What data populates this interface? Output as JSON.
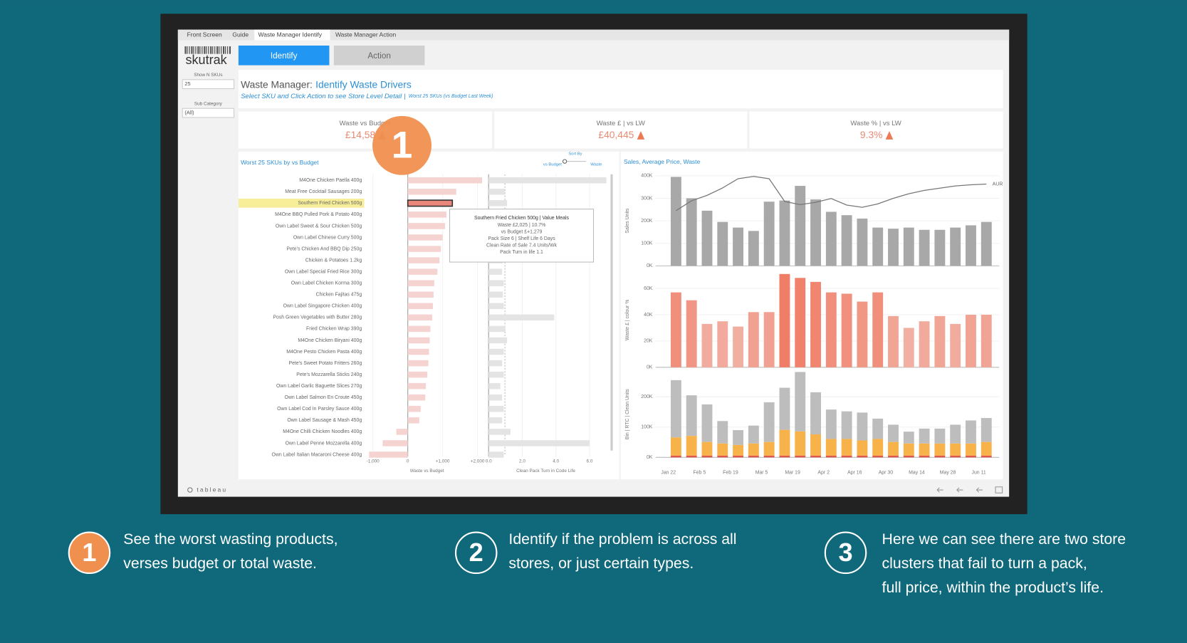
{
  "dashboard": {
    "tabs": [
      "Front Screen",
      "Guide",
      "Waste Manager Identify",
      "Waste Manager Action"
    ],
    "logo": "skutrak",
    "buttons": [
      "Identify",
      "Action"
    ],
    "filters": [
      {
        "label": "Show N SKUs",
        "value": "25"
      },
      {
        "label": "Sub Category",
        "value": "(All)"
      }
    ],
    "title_prefix": "Waste Manager:",
    "title_highlight": "Identify Waste Drivers",
    "subtitle": "Select SKU and  Click Action to see Store Level Detail |",
    "subtitle_note": "Worst 25 SKUs (vs Budget Last Week)",
    "kpis": [
      {
        "label": "Waste vs Budget",
        "value": "£14,58"
      },
      {
        "label": "Waste £ | vs LW",
        "value": "£40,445"
      },
      {
        "label": "Waste % | vs LW",
        "value": "9.3%"
      }
    ],
    "footer": "tableau",
    "annotation": "1"
  },
  "chart_data": [
    {
      "type": "hbar",
      "title": "Worst 25 SKUs by vs Budget",
      "sort_label": "Sort By",
      "sort_options": [
        "vs Budget",
        "Waste"
      ],
      "xlabel": "Waste vs Budget",
      "color": "#f5d3d0",
      "highlight_color": "#e8877a",
      "highlight_index": 2,
      "highlight_row_color": "#f8ee9a",
      "categories": [
        "M4One Chicken Paella 400g",
        "Meat Free Cocktail Sausages 200g",
        "Southern Fried Chicken 500g",
        "M4One BBQ Pulled Pork & Potato 400g",
        "Own Label Sweet & Sour Chicken 500g",
        "Own Label Chinese Curry 500g",
        "Pete's Chicken And BBQ Dip 250g",
        "Chicken & Potatoes 1.2kg",
        "Own Label Special Fried Rice 300g",
        "Own Label Chicken Korma 300g",
        "Chicken Fajitas 475g",
        "Own Label Singapore Chicken 400g",
        "Posh Green Vegetables with Butter 280g",
        "Fried Chicken Wrap 390g",
        "M4One Chicken Biryani 400g",
        "M4One Pesto Chicken Pasta 400g",
        "Pete's Sweet Potato Fritters 260g",
        "Pete's Mozzarella Sticks 240g",
        "Own Label Garlic Baguette Slices 270g",
        "Own Label Salmon En Croute 450g",
        "Own Label Cod In Parsley Sauce 400g",
        "Own Label Sausage & Mash 450g",
        "M4One Chilli Chicken Noodles 400g",
        "Own Label Penne Mozzarella 400g",
        "Own Label Italian Macaroni Cheese 400g"
      ],
      "values": [
        2130,
        1390,
        1279,
        1110,
        1070,
        1000,
        950,
        910,
        850,
        760,
        740,
        720,
        700,
        650,
        630,
        610,
        590,
        560,
        520,
        500,
        370,
        330,
        -330,
        -720,
        -1110
      ],
      "xlim": [
        -1100,
        2200
      ],
      "xticks": [
        {
          "value": -1000,
          "label": "-1,000"
        },
        0,
        {
          "value": 1000,
          "label": "+1,000"
        },
        {
          "value": 2000,
          "label": "+2,000"
        }
      ],
      "tooltip": [
        "Southern Fried Chicken 500g | Value Meals",
        "Waste £2,025 | 10.7%",
        "vs Budget £+1,279",
        "Pack Size 6 | Shelf Life 6 Days",
        "Clean Rate of Sale 7.4 Units/Wk",
        "Pack Turn in life 1.1"
      ]
    },
    {
      "type": "hbar",
      "xlabel": "Clean Pack Turn in Code Life",
      "color": "#e4e4e4",
      "values": [
        7.0,
        0.95,
        1.1,
        0.9,
        0.8,
        0.9,
        0.8,
        0.85,
        0.8,
        0.9,
        0.85,
        0.9,
        3.9,
        1.0,
        1.1,
        0.9,
        0.8,
        0.9,
        0.7,
        0.8,
        0.9,
        0.8,
        1.3,
        6.0,
        0.9
      ],
      "xlim": [
        -0.2,
        7.0
      ],
      "xticks": [
        {
          "value": 0,
          "label": "0.0"
        },
        {
          "value": 2,
          "label": "2.0"
        },
        {
          "value": 4,
          "label": "4.0"
        },
        {
          "value": 6,
          "label": "6.0"
        }
      ]
    },
    {
      "type": "bar",
      "title": "Sales, Average Price, Waste",
      "ylabel": "Sales Units",
      "ylim": [
        0,
        400000
      ],
      "yticks": [
        {
          "value": 0,
          "label": "0K"
        },
        {
          "value": 100000,
          "label": "100K"
        },
        {
          "value": 200000,
          "label": "200K"
        },
        {
          "value": 300000,
          "label": "300K"
        },
        {
          "value": 400000,
          "label": "400K"
        }
      ],
      "series": [
        {
          "color": "#a8a8a8",
          "values": [
            395000,
            300000,
            245000,
            195000,
            170000,
            155000,
            285000,
            290000,
            355000,
            295000,
            240000,
            225000,
            210000,
            170000,
            165000,
            170000,
            160000,
            160000,
            170000,
            180000,
            195000
          ]
        },
        {
          "name": "AUR",
          "kind": "line",
          "color": "#777777",
          "values": [
            245000,
            289000,
            313000,
            346000,
            387000,
            397000,
            387000,
            286000,
            272000,
            282000,
            299000,
            270000,
            260000,
            275000,
            300000,
            320000,
            335000,
            345000,
            355000,
            360000,
            363000
          ]
        }
      ]
    },
    {
      "type": "bar",
      "ylabel": "Waste £ | colour %",
      "ylim": [
        0,
        72000
      ],
      "yticks": [
        {
          "value": 0,
          "label": "0K"
        },
        {
          "value": 20000,
          "label": "20K"
        },
        {
          "value": 40000,
          "label": "40K"
        },
        {
          "value": 60000,
          "label": "60K"
        }
      ],
      "color_scale": [
        "#f2d4cd",
        "#f07d66"
      ],
      "series": [
        {
          "values": [
            57000,
            51000,
            33000,
            35000,
            31000,
            42000,
            42000,
            71000,
            68000,
            65000,
            57000,
            56000,
            50000,
            57000,
            39000,
            30000,
            35000,
            39000,
            33000,
            40000,
            40000
          ]
        }
      ]
    },
    {
      "type": "stacked",
      "ylabel": "Bin | RTC | Clean Units",
      "ylim": [
        0,
        285000
      ],
      "yticks": [
        {
          "value": 0,
          "label": "0K"
        },
        {
          "value": 100000,
          "label": "100K"
        },
        {
          "value": 200000,
          "label": "200K"
        }
      ],
      "categories": [
        "Jan 22",
        null,
        "Feb 5",
        null,
        "Feb 19",
        null,
        "Mar 5",
        null,
        "Mar 19",
        null,
        "Apr 2",
        null,
        "Apr 16",
        null,
        "Apr 30",
        null,
        "May 14",
        null,
        "May 28",
        null,
        "Jun 11"
      ],
      "series": [
        {
          "color": "#e0584a",
          "values": [
            6000,
            6000,
            6000,
            6000,
            6000,
            6000,
            6000,
            6000,
            6000,
            6000,
            6000,
            6000,
            6000,
            6000,
            6000,
            6000,
            6000,
            6000,
            6000,
            6000,
            6000
          ]
        },
        {
          "color": "#f7b24a",
          "values": [
            60000,
            65000,
            45000,
            40000,
            35000,
            40000,
            45000,
            85000,
            80000,
            70000,
            55000,
            55000,
            50000,
            55000,
            45000,
            40000,
            40000,
            40000,
            40000,
            40000,
            45000
          ]
        },
        {
          "color": "#bdbdbd",
          "values": [
            189000,
            134000,
            124000,
            74000,
            49000,
            59000,
            131000,
            139000,
            196000,
            139000,
            97000,
            91000,
            92000,
            67000,
            57000,
            39000,
            49000,
            49000,
            62000,
            76000,
            79000
          ]
        }
      ]
    }
  ],
  "steps": [
    {
      "number": "1",
      "lines": [
        "See the worst wasting products,",
        "verses budget or total waste."
      ]
    },
    {
      "number": "2",
      "lines": [
        "Identify if the problem is across all",
        "stores, or just certain types."
      ]
    },
    {
      "number": "3",
      "lines": [
        "Here we can see there are two store",
        "clusters that fail to turn a pack,",
        "full price, within the product’s life."
      ]
    }
  ]
}
